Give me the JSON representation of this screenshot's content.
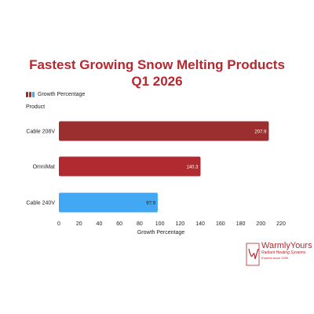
{
  "chart_data": {
    "type": "bar",
    "orientation": "horizontal",
    "title_lines": [
      "Fastest Growing Snow Melting Products",
      "Q1 2026"
    ],
    "ylabel": "Product",
    "xlabel": "Growth Percentage",
    "legend": {
      "label": "Growth Percentage",
      "placement": "top-left"
    },
    "categories": [
      "Cable 208V",
      "OmniMat",
      "Cable 240V"
    ],
    "values": [
      207.9,
      140.3,
      97.9
    ],
    "data_labels": [
      "207.9",
      "140.3",
      "97.9"
    ],
    "bar_colors": [
      "#9b2e2e",
      "#b02a30",
      "#42a8f3"
    ],
    "legend_colors": [
      "#9b2e2e",
      "#b02a30",
      "#42a8f3"
    ],
    "xlim": [
      0,
      220
    ],
    "xticks": [
      0,
      20,
      40,
      60,
      80,
      100,
      120,
      140,
      160,
      180,
      200,
      220
    ],
    "grid": false
  },
  "logo": {
    "brand": "WarmlyYours",
    "tagline": "Radiant Heating Systems",
    "since": "Experts since 1999",
    "color": "#b7282e"
  }
}
